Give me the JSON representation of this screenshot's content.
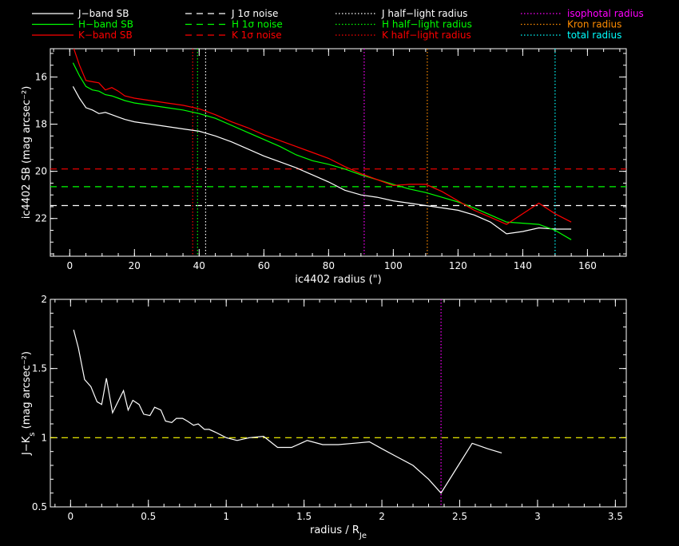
{
  "legend": [
    {
      "label": "J−band SB",
      "color": "#ffffff",
      "style": "solid"
    },
    {
      "label": "H−band SB",
      "color": "#00ff00",
      "style": "solid"
    },
    {
      "label": "K−band SB",
      "color": "#ff0000",
      "style": "solid"
    },
    {
      "label": "J 1σ noise",
      "color": "#ffffff",
      "style": "dashed"
    },
    {
      "label": "H 1σ noise",
      "color": "#00ff00",
      "style": "dashed"
    },
    {
      "label": "K 1σ noise",
      "color": "#ff0000",
      "style": "dashed"
    },
    {
      "label": "J half−light radius",
      "color": "#ffffff",
      "style": "dotted"
    },
    {
      "label": "H half−light radius",
      "color": "#00ff00",
      "style": "dotted"
    },
    {
      "label": "K half−light radius",
      "color": "#ff0000",
      "style": "dotted"
    },
    {
      "label": "isophotal radius",
      "color": "#ff00ff",
      "style": "dotted"
    },
    {
      "label": "Kron radius",
      "color": "#ff8c00",
      "style": "dotted"
    },
    {
      "label": "total radius",
      "color": "#00ffff",
      "style": "dotted"
    }
  ],
  "chart_data": [
    {
      "type": "line",
      "title": "",
      "xlabel": "ic4402 radius (\")",
      "ylabel": "ic4402 SB (mag arcsec⁻²)",
      "xlim": [
        -6,
        172
      ],
      "ylim": [
        23.6,
        14.8
      ],
      "x_ticks": [
        0,
        20,
        40,
        60,
        80,
        100,
        120,
        140,
        160
      ],
      "y_ticks": [
        16,
        18,
        20,
        22
      ],
      "y_inverted": true,
      "series": [
        {
          "name": "J−band SB",
          "color": "#ffffff",
          "x": [
            1,
            3,
            5,
            7,
            9,
            11,
            13,
            15,
            17,
            20,
            25,
            30,
            35,
            40,
            45,
            50,
            55,
            60,
            65,
            70,
            75,
            80,
            85,
            90,
            95,
            100,
            105,
            110,
            115,
            120,
            125,
            130,
            135,
            140,
            145,
            150,
            155
          ],
          "y": [
            16.4,
            16.9,
            17.3,
            17.4,
            17.55,
            17.5,
            17.6,
            17.7,
            17.8,
            17.9,
            18.0,
            18.1,
            18.2,
            18.3,
            18.5,
            18.75,
            19.05,
            19.35,
            19.6,
            19.85,
            20.15,
            20.45,
            20.8,
            21.0,
            21.1,
            21.25,
            21.35,
            21.45,
            21.55,
            21.65,
            21.85,
            22.15,
            22.65,
            22.55,
            22.4,
            22.45,
            22.45
          ]
        },
        {
          "name": "H−band SB",
          "color": "#00ff00",
          "x": [
            1,
            3,
            5,
            7,
            9,
            11,
            13,
            15,
            17,
            20,
            25,
            30,
            35,
            40,
            45,
            50,
            55,
            60,
            65,
            70,
            75,
            80,
            85,
            90,
            95,
            100,
            105,
            110,
            115,
            120,
            125,
            130,
            135,
            140,
            145,
            150,
            155
          ],
          "y": [
            15.4,
            15.95,
            16.4,
            16.55,
            16.6,
            16.75,
            16.8,
            16.9,
            17.0,
            17.1,
            17.2,
            17.3,
            17.4,
            17.55,
            17.75,
            18.05,
            18.35,
            18.65,
            18.95,
            19.3,
            19.55,
            19.7,
            19.9,
            20.15,
            20.35,
            20.55,
            20.75,
            20.9,
            21.1,
            21.3,
            21.55,
            21.85,
            22.15,
            22.2,
            22.25,
            22.5,
            22.9
          ]
        },
        {
          "name": "K−band SB",
          "color": "#ff0000",
          "x": [
            1,
            3,
            5,
            7,
            9,
            11,
            13,
            15,
            17,
            20,
            25,
            30,
            35,
            40,
            45,
            50,
            55,
            60,
            65,
            70,
            75,
            80,
            85,
            90,
            95,
            100,
            105,
            110,
            115,
            120,
            125,
            130,
            135,
            140,
            145,
            150,
            155
          ],
          "y": [
            14.7,
            15.5,
            16.15,
            16.2,
            16.25,
            16.55,
            16.45,
            16.6,
            16.8,
            16.9,
            17.0,
            17.1,
            17.2,
            17.35,
            17.6,
            17.9,
            18.15,
            18.45,
            18.7,
            18.95,
            19.2,
            19.45,
            19.8,
            20.1,
            20.35,
            20.6,
            20.55,
            20.55,
            20.85,
            21.25,
            21.65,
            21.95,
            22.25,
            21.8,
            21.35,
            21.8,
            22.15
          ]
        }
      ],
      "hlines": [
        {
          "name": "J 1σ noise",
          "y": 21.45,
          "color": "#ffffff"
        },
        {
          "name": "H 1σ noise",
          "y": 20.65,
          "color": "#00ff00"
        },
        {
          "name": "K 1σ noise",
          "y": 19.9,
          "color": "#ff0000"
        }
      ],
      "vlines": [
        {
          "name": "J half−light radius",
          "x": 42,
          "color": "#ffffff"
        },
        {
          "name": "H half−light radius",
          "x": 39.5,
          "color": "#00ff00"
        },
        {
          "name": "K half−light radius",
          "x": 38,
          "color": "#ff0000"
        },
        {
          "name": "isophotal radius",
          "x": 91,
          "color": "#ff00ff"
        },
        {
          "name": "Kron radius",
          "x": 110.5,
          "color": "#ff8c00"
        },
        {
          "name": "total radius",
          "x": 150,
          "color": "#00ffff"
        }
      ]
    },
    {
      "type": "line",
      "title": "",
      "xlabel": "radius / R",
      "xlabel_sub": "Je",
      "ylabel": "J−K",
      "ylabel_sub": "s",
      "ylabel_rest": " (mag arcsec⁻²)",
      "xlim": [
        -0.13,
        3.57
      ],
      "ylim": [
        0.5,
        2.0
      ],
      "x_ticks": [
        0,
        0.5,
        1,
        1.5,
        2,
        2.5,
        3,
        3.5
      ],
      "y_ticks": [
        0.5,
        1,
        1.5,
        2
      ],
      "x_tick_labels": [
        "0",
        "0.5",
        "1",
        "1.5",
        "2",
        "2.5",
        "3",
        "3.5"
      ],
      "y_tick_labels": [
        "0.5",
        "1",
        "1.5",
        "2"
      ],
      "series": [
        {
          "name": "J−K",
          "color": "#ffffff",
          "x": [
            0.02,
            0.05,
            0.09,
            0.13,
            0.17,
            0.2,
            0.23,
            0.27,
            0.3,
            0.34,
            0.37,
            0.4,
            0.44,
            0.47,
            0.51,
            0.54,
            0.58,
            0.61,
            0.65,
            0.68,
            0.72,
            0.75,
            0.79,
            0.82,
            0.86,
            0.89,
            0.93,
            1.0,
            1.07,
            1.15,
            1.24,
            1.33,
            1.42,
            1.52,
            1.62,
            1.72,
            1.82,
            1.92,
            2.0,
            2.1,
            2.2,
            2.3,
            2.38,
            2.48,
            2.58,
            2.68,
            2.77
          ],
          "y": [
            1.78,
            1.65,
            1.42,
            1.37,
            1.26,
            1.24,
            1.43,
            1.18,
            1.25,
            1.34,
            1.2,
            1.27,
            1.24,
            1.17,
            1.16,
            1.22,
            1.2,
            1.12,
            1.11,
            1.14,
            1.14,
            1.12,
            1.09,
            1.1,
            1.06,
            1.06,
            1.04,
            1.0,
            0.98,
            1.0,
            1.01,
            0.93,
            0.93,
            0.98,
            0.95,
            0.95,
            0.96,
            0.97,
            0.92,
            0.86,
            0.8,
            0.7,
            0.6,
            0.78,
            0.96,
            0.92,
            0.89
          ]
        }
      ],
      "hlines": [
        {
          "name": "J−K reference",
          "y": 1.0,
          "color": "#ffff00"
        }
      ],
      "vlines": [
        {
          "name": "isophotal radius",
          "x": 2.38,
          "color": "#ff00ff"
        }
      ]
    }
  ]
}
